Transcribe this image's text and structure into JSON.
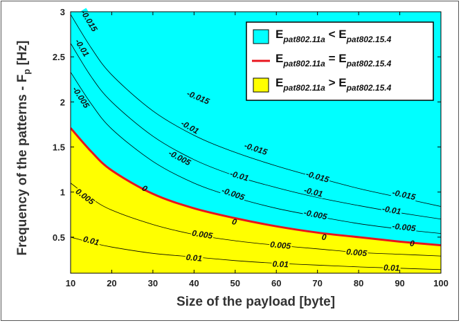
{
  "chart_data": {
    "type": "contour",
    "title": "",
    "xlabel": "Size of the payload [byte]",
    "ylabel_main": "Frequency of the patterns - F",
    "ylabel_sub": "p",
    "ylabel_unit": " [Hz]",
    "xlim": [
      10,
      100
    ],
    "ylim": [
      0.1,
      3
    ],
    "xticks": [
      "10",
      "20",
      "30",
      "40",
      "50",
      "60",
      "70",
      "80",
      "90",
      "100"
    ],
    "yticks": [
      "0.5",
      "1",
      "1.5",
      "2",
      "2.5",
      "3"
    ],
    "colors": {
      "above": "#00ffff",
      "below": "#ffff00",
      "zero_line": "#e8141e",
      "contour": "#000000"
    },
    "legend": {
      "position": "top-right",
      "entries": [
        {
          "kind": "patch",
          "color": "#00ffff",
          "left": "E",
          "left_sub": "pat802.11a",
          "op": " < ",
          "right": "E",
          "right_sub": "pat802.15.4"
        },
        {
          "kind": "line",
          "color": "#e8141e",
          "left": "E",
          "left_sub": "pat802.11a",
          "op": " = ",
          "right": "E",
          "right_sub": "pat802.15.4"
        },
        {
          "kind": "patch",
          "color": "#ffff00",
          "left": "E",
          "left_sub": "pat802.11a",
          "op": " > ",
          "right": "E",
          "right_sub": "pat802.15.4"
        }
      ]
    },
    "contours": [
      {
        "level": -0.015,
        "label": "-0.015",
        "points": [
          [
            10,
            2.97
          ],
          [
            15,
            2.6
          ],
          [
            20,
            2.3
          ],
          [
            30,
            1.9
          ],
          [
            40,
            1.63
          ],
          [
            50,
            1.44
          ],
          [
            60,
            1.29
          ],
          [
            70,
            1.16
          ],
          [
            80,
            1.04
          ],
          [
            90,
            0.94
          ],
          [
            100,
            0.84
          ]
        ],
        "labels": [
          [
            14.5,
            2.9
          ],
          [
            41,
            2.05
          ],
          [
            55,
            1.48
          ],
          [
            70,
            1.17
          ],
          [
            91,
            0.97
          ]
        ]
      },
      {
        "level": -0.01,
        "label": "-0.01",
        "points": [
          [
            10,
            2.65
          ],
          [
            15,
            2.28
          ],
          [
            20,
            2.0
          ],
          [
            30,
            1.62
          ],
          [
            40,
            1.36
          ],
          [
            50,
            1.18
          ],
          [
            60,
            1.05
          ],
          [
            70,
            0.94
          ],
          [
            80,
            0.85
          ],
          [
            90,
            0.77
          ],
          [
            100,
            0.7
          ]
        ],
        "labels": [
          [
            12.8,
            2.6
          ],
          [
            39,
            1.72
          ],
          [
            51,
            1.18
          ],
          [
            69,
            1.0
          ],
          [
            88,
            0.8
          ]
        ]
      },
      {
        "level": -0.005,
        "label": "-0.005",
        "points": [
          [
            10,
            2.33
          ],
          [
            15,
            1.98
          ],
          [
            20,
            1.7
          ],
          [
            30,
            1.34
          ],
          [
            40,
            1.1
          ],
          [
            50,
            0.94
          ],
          [
            60,
            0.82
          ],
          [
            70,
            0.73
          ],
          [
            80,
            0.65
          ],
          [
            90,
            0.59
          ],
          [
            100,
            0.54
          ]
        ],
        "labels": [
          [
            12.5,
            2.05
          ],
          [
            36.5,
            1.38
          ],
          [
            49.5,
            0.98
          ],
          [
            69.5,
            0.75
          ],
          [
            91,
            0.61
          ]
        ]
      },
      {
        "level": 0,
        "label": "0",
        "points": [
          [
            10,
            1.71
          ],
          [
            15,
            1.45
          ],
          [
            20,
            1.24
          ],
          [
            30,
            0.98
          ],
          [
            40,
            0.82
          ],
          [
            50,
            0.71
          ],
          [
            60,
            0.62
          ],
          [
            70,
            0.55
          ],
          [
            80,
            0.5
          ],
          [
            90,
            0.45
          ],
          [
            100,
            0.41
          ]
        ],
        "labels": [
          [
            28,
            1.04
          ],
          [
            49.8,
            0.67
          ],
          [
            71.6,
            0.5
          ],
          [
            93,
            0.43
          ]
        ]
      },
      {
        "level": 0.005,
        "label": "0.005",
        "points": [
          [
            10,
            1.1
          ],
          [
            15,
            0.93
          ],
          [
            20,
            0.8
          ],
          [
            30,
            0.64
          ],
          [
            40,
            0.53
          ],
          [
            50,
            0.46
          ],
          [
            60,
            0.41
          ],
          [
            70,
            0.37
          ],
          [
            80,
            0.33
          ],
          [
            90,
            0.31
          ],
          [
            100,
            0.29
          ]
        ],
        "labels": [
          [
            13.5,
            0.95
          ],
          [
            42,
            0.53
          ],
          [
            61,
            0.41
          ],
          [
            79.5,
            0.33
          ]
        ]
      },
      {
        "level": 0.01,
        "label": "0.01",
        "points": [
          [
            10,
            0.5
          ],
          [
            15,
            0.44
          ],
          [
            20,
            0.39
          ],
          [
            30,
            0.32
          ],
          [
            40,
            0.28
          ],
          [
            50,
            0.24
          ],
          [
            60,
            0.21
          ],
          [
            70,
            0.19
          ],
          [
            80,
            0.17
          ],
          [
            90,
            0.155
          ],
          [
            100,
            0.14
          ]
        ],
        "labels": [
          [
            15,
            0.46
          ],
          [
            40,
            0.27
          ],
          [
            61,
            0.2
          ],
          [
            88,
            0.16
          ]
        ]
      }
    ]
  }
}
